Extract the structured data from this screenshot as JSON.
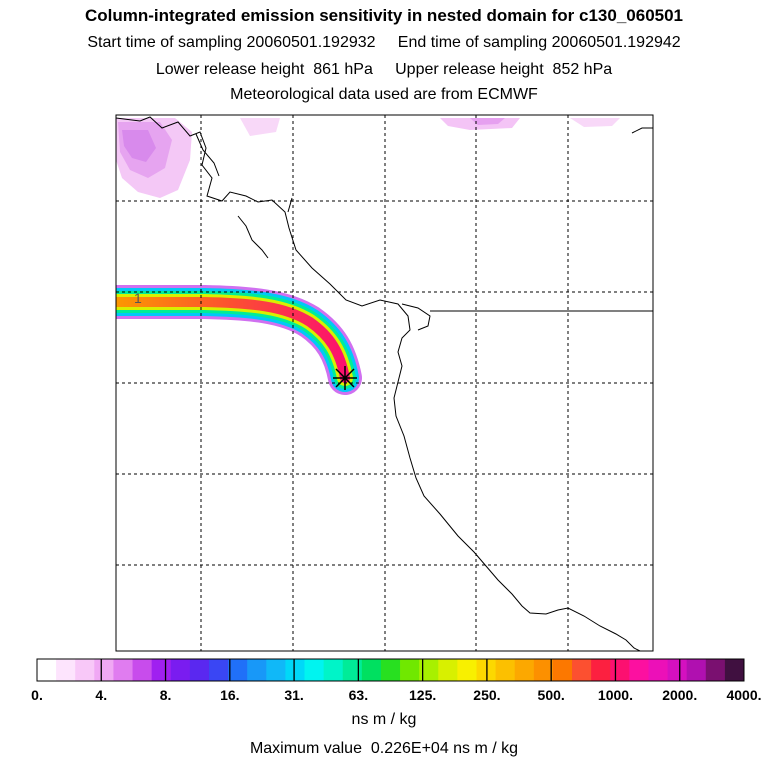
{
  "header": {
    "title": "Column-integrated emission sensitivity in nested domain for c130_060501",
    "sampling_start_label": "Start time of sampling 20060501.192932",
    "sampling_end_label": "End time of sampling 20060501.192942",
    "lower_release_label": "Lower release height  861 hPa",
    "upper_release_label": "Upper release height  852 hPa",
    "met_data_label": "Meteorological data used are from ECMWF"
  },
  "map": {
    "trajectory_marker_label": "1",
    "release_point_symbol": "asterisk-marker",
    "grid": "dashed"
  },
  "colorbar": {
    "units": "ns m / kg",
    "tick_labels": [
      "0.",
      "4.",
      "8.",
      "16.",
      "31.",
      "63.",
      "125.",
      "250.",
      "500.",
      "1000.",
      "2000.",
      "4000."
    ],
    "colors": [
      "#ffffff",
      "#fde4fd",
      "#f8c8f8",
      "#f0a8f4",
      "#e07cf0",
      "#c84cec",
      "#a020f0",
      "#7a1cf0",
      "#5a28f0",
      "#3a46f4",
      "#2070f8",
      "#1898f8",
      "#10b8f8",
      "#00d8f8",
      "#00f4f0",
      "#00f4c8",
      "#00ec98",
      "#00e060",
      "#28e020",
      "#70e800",
      "#a8f000",
      "#d8f000",
      "#f8f000",
      "#fcd800",
      "#fcc000",
      "#fca800",
      "#fc9000",
      "#fc7800",
      "#fc5030",
      "#fc2040",
      "#fc1070",
      "#fc10a0",
      "#ec10b8",
      "#d410c0",
      "#b010b0",
      "#7a1070",
      "#401040"
    ]
  },
  "max_value_label": "Maximum value  0.226E+04 ns m / kg"
}
